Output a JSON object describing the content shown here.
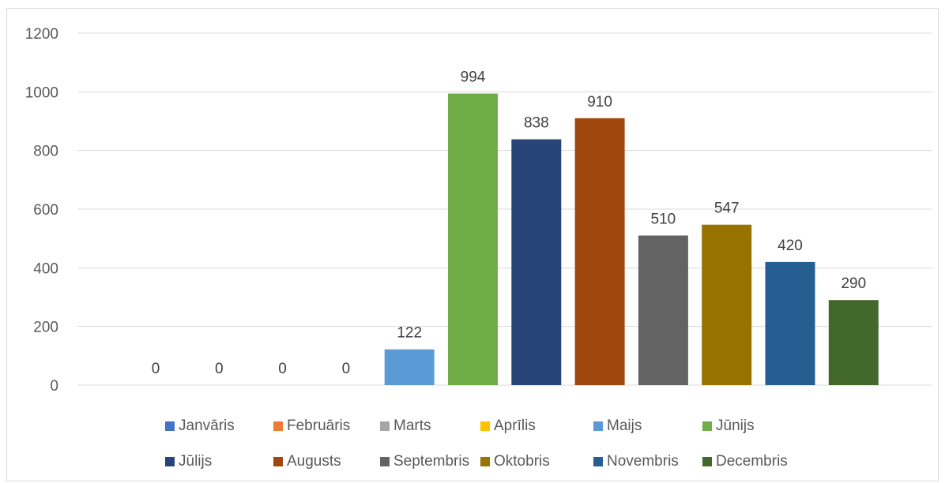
{
  "chart_data": {
    "type": "bar",
    "categories": [
      "Janvāris",
      "Februāris",
      "Marts",
      "Aprīlis",
      "Maijs",
      "Jūnijs",
      "Jūlijs",
      "Augusts",
      "Septembris",
      "Oktobris",
      "Novembris",
      "Decembris"
    ],
    "values": [
      0,
      0,
      0,
      0,
      122,
      994,
      838,
      910,
      510,
      547,
      420,
      290
    ],
    "data_labels": [
      "0",
      "0",
      "0",
      "0",
      "122",
      "994",
      "838",
      "910",
      "510",
      "547",
      "420",
      "290"
    ],
    "colors": [
      "#4472C4",
      "#ED7D31",
      "#A5A5A5",
      "#FFC000",
      "#5B9BD5",
      "#70AD47",
      "#264478",
      "#9E480E",
      "#636363",
      "#997300",
      "#255E91",
      "#43682B"
    ],
    "yticks": [
      "0",
      "200",
      "400",
      "600",
      "800",
      "1000",
      "1200"
    ],
    "ylim": [
      0,
      1200
    ],
    "grid": true,
    "legend_position": "bottom",
    "title": "",
    "xlabel": "",
    "ylabel": ""
  }
}
